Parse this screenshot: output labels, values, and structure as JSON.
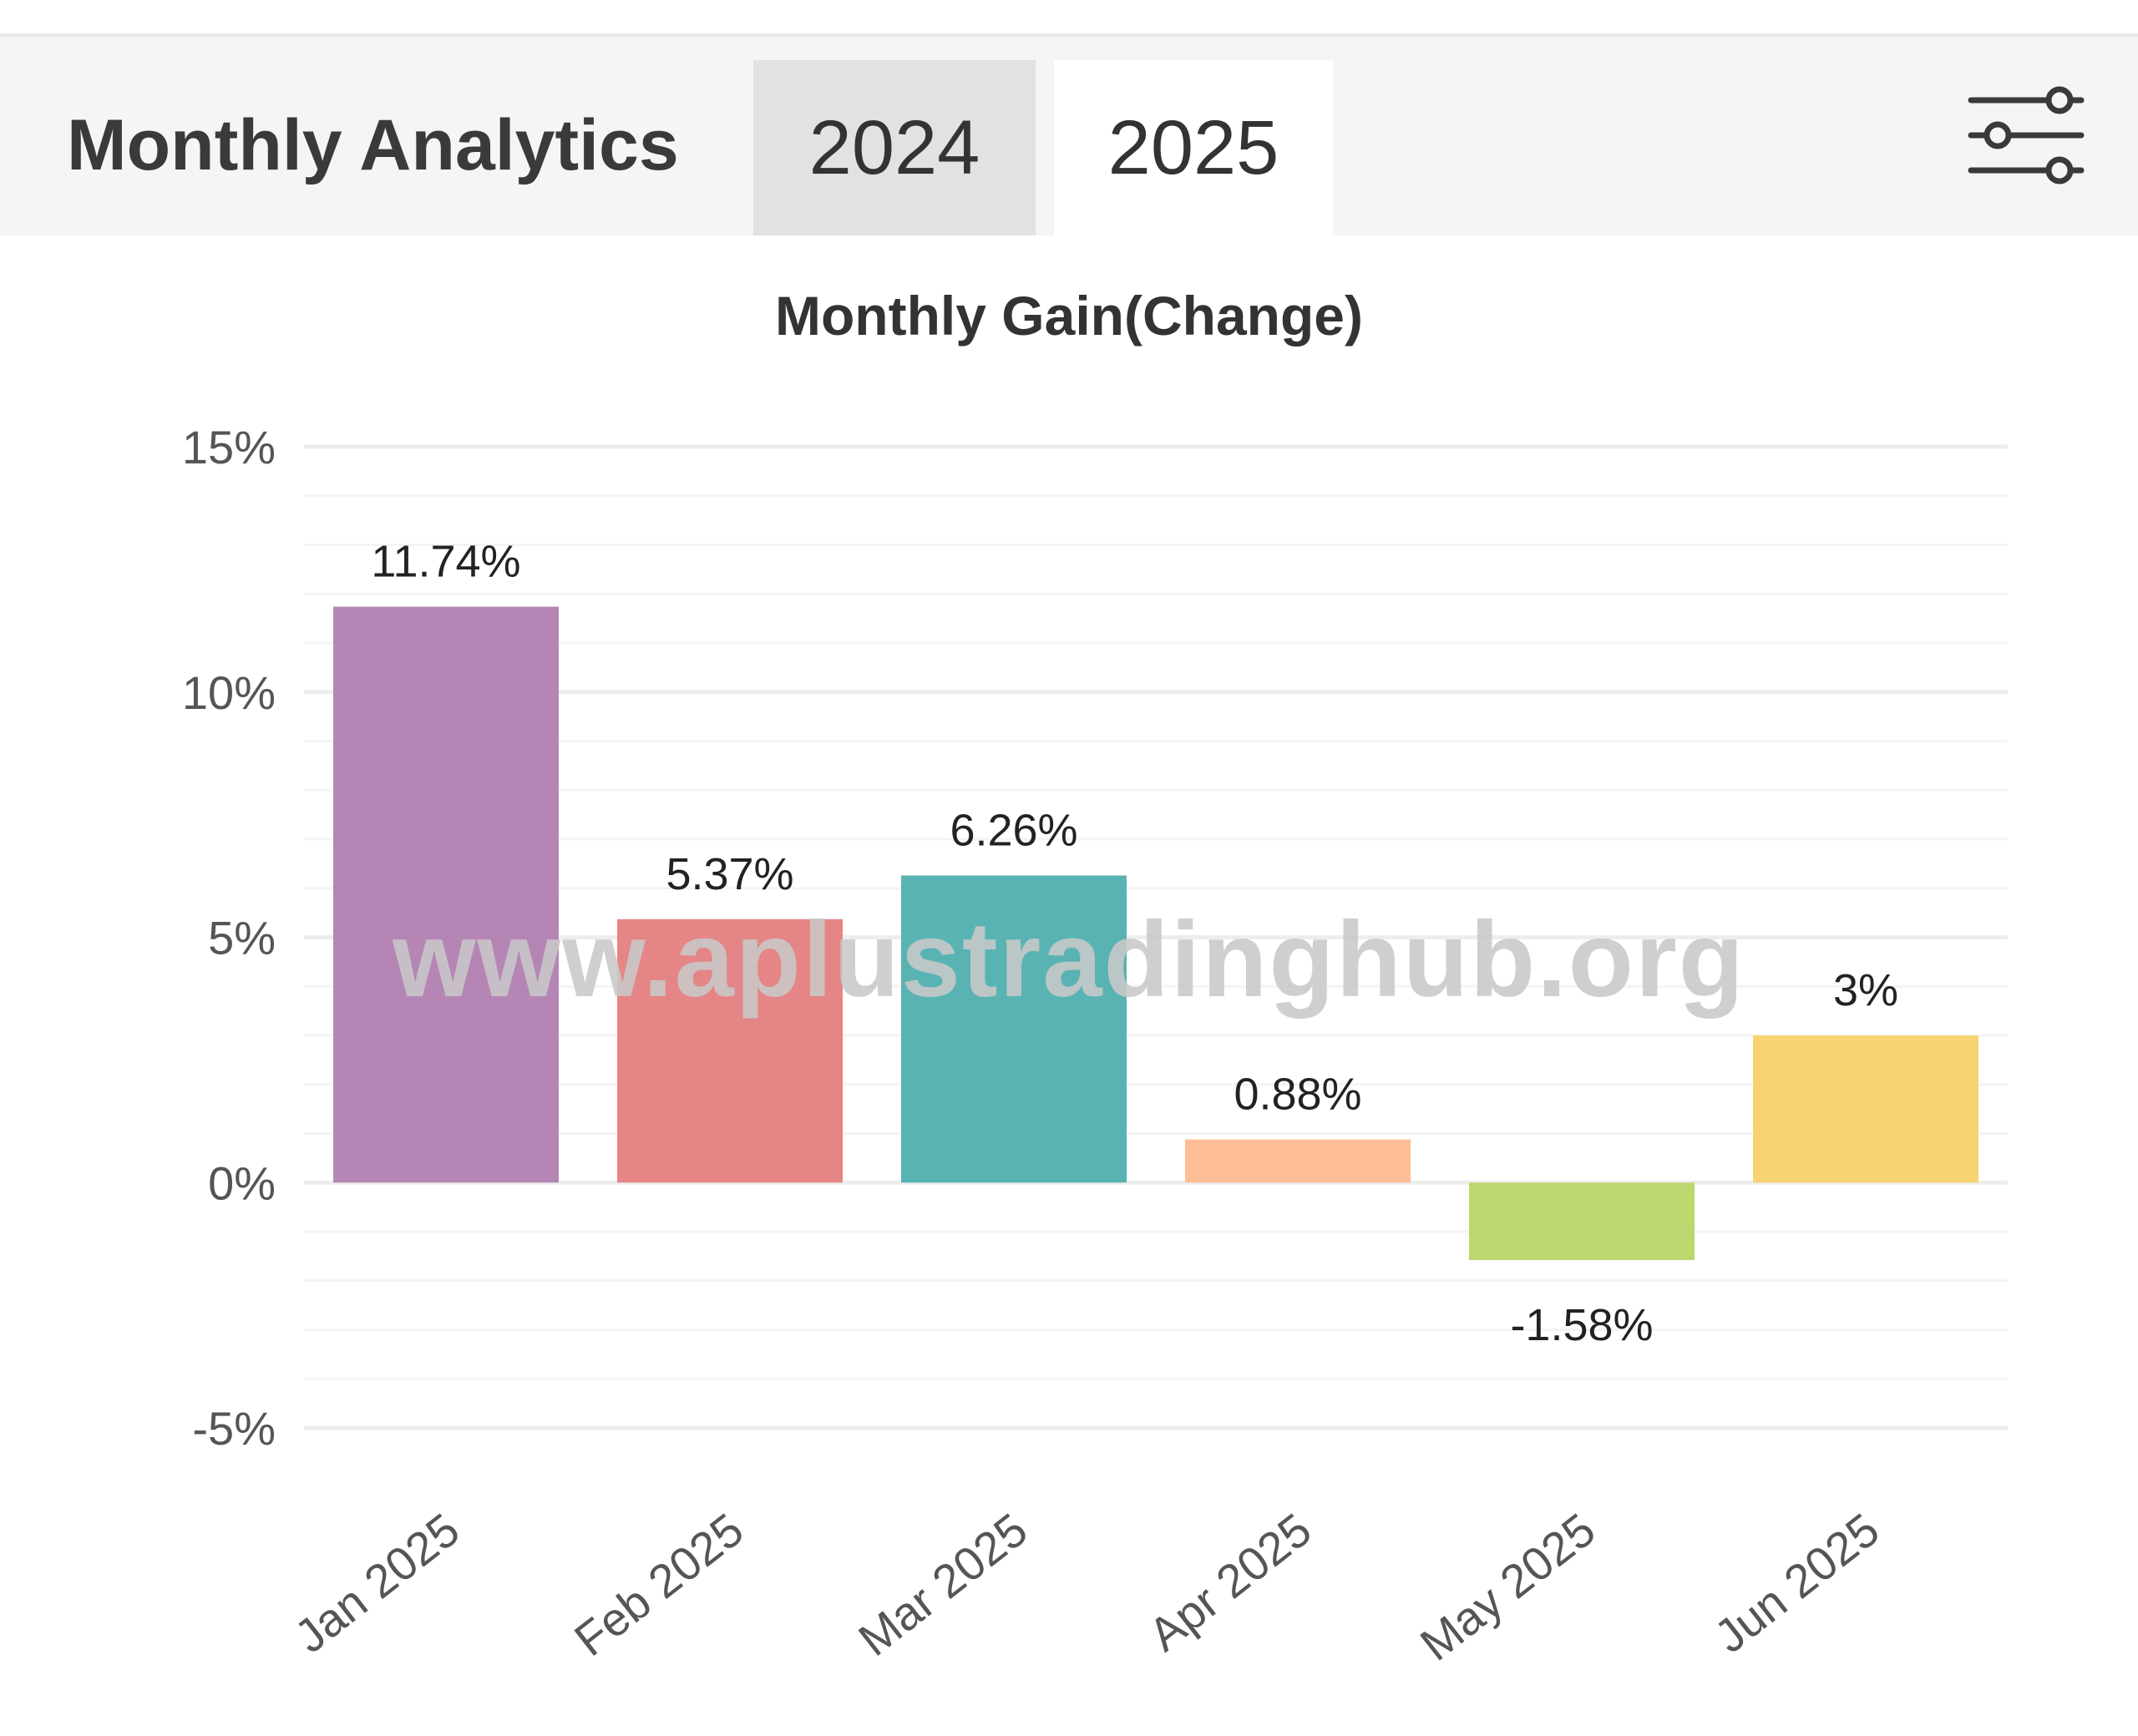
{
  "header": {
    "title": "Monthly Analytics",
    "tabs": [
      {
        "label": "2024",
        "selected": false
      },
      {
        "label": "2025",
        "selected": true
      }
    ],
    "settings_icon": "sliders-icon"
  },
  "watermark": "www.aplustradinghub.org",
  "colors": {
    "header_bg": "#f5f5f5",
    "grid": "#ededed",
    "axis_text": "#555555"
  },
  "chart_data": {
    "type": "bar",
    "title": "Monthly Gain(Change)",
    "xlabel": "",
    "ylabel": "",
    "categories": [
      "Jan 2025",
      "Feb 2025",
      "Mar 2025",
      "Apr 2025",
      "May 2025",
      "Jun 2025"
    ],
    "values": [
      11.74,
      5.37,
      6.26,
      0.88,
      -1.58,
      3
    ],
    "value_labels": [
      "11.74%",
      "5.37%",
      "6.26%",
      "0.88%",
      "-1.58%",
      "3%"
    ],
    "colors": [
      "#b586b5",
      "#e58585",
      "#5ab3b3",
      "#fdbd96",
      "#bcd76e",
      "#f7d371"
    ],
    "ylim": [
      -5,
      15
    ],
    "yticks": [
      15,
      10,
      5,
      0,
      -5
    ],
    "ytick_labels": [
      "15%",
      "10%",
      "5%",
      "0%",
      "-5%"
    ],
    "grid": true,
    "legend": false
  }
}
